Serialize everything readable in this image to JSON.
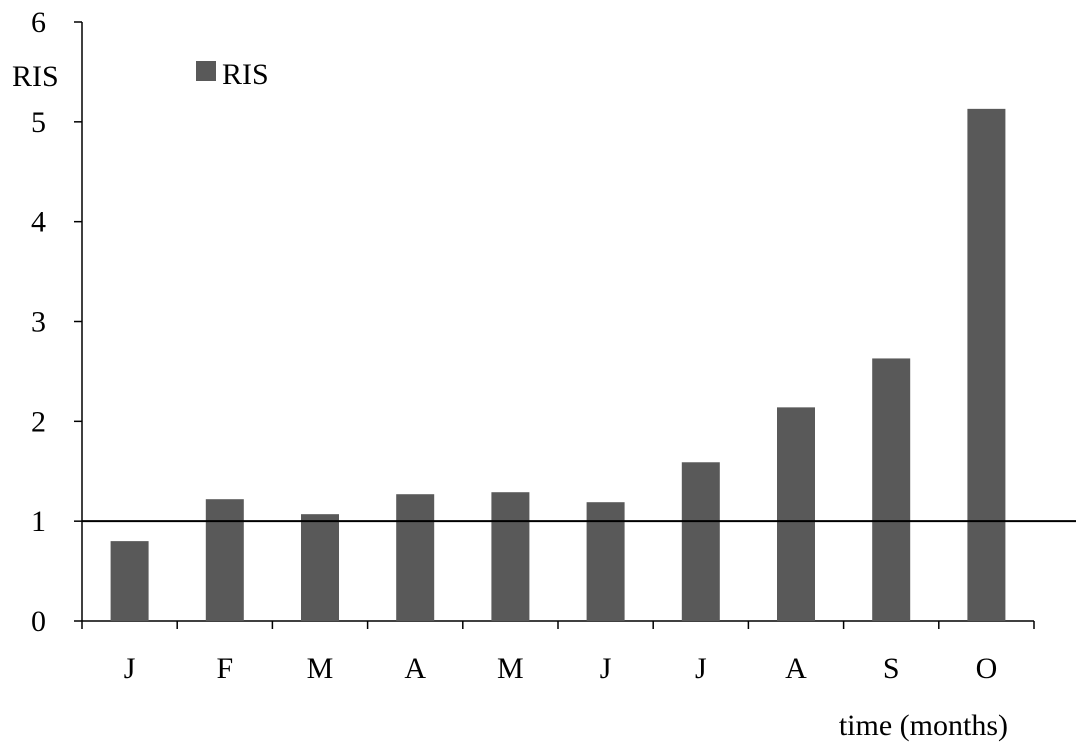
{
  "chart_data": {
    "type": "bar",
    "categories": [
      "J",
      "F",
      "M",
      "A",
      "M",
      "J",
      "J",
      "A",
      "S",
      "O"
    ],
    "series": [
      {
        "name": "RIS",
        "values": [
          0.8,
          1.22,
          1.07,
          1.27,
          1.29,
          1.19,
          1.59,
          2.14,
          2.63,
          5.13
        ]
      }
    ],
    "ylabel": "RIS",
    "xlabel": "time (months)",
    "ylim": [
      0,
      6
    ],
    "yticks": [
      "0",
      "1",
      "2",
      "3",
      "4",
      "5",
      "6"
    ],
    "reference_line": 1,
    "legend_position": "top-left",
    "grid": false,
    "bar_color": "#595959"
  }
}
